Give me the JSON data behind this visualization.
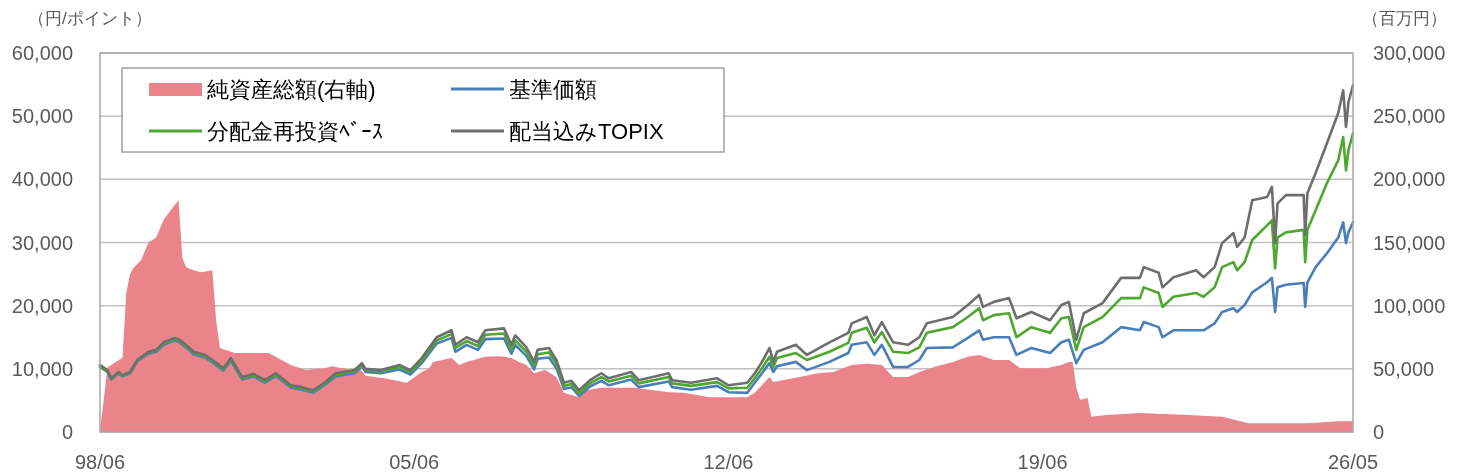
{
  "chart_data": {
    "type": "line",
    "ylabel": "（円/ポイント）",
    "y2label": "（百万円）",
    "xlim": [
      "1998-06",
      "2026-05"
    ],
    "xticks": [
      {
        "value": "1998-06",
        "label": "98/06"
      },
      {
        "value": "2005-06",
        "label": "05/06"
      },
      {
        "value": "2012-06",
        "label": "12/06"
      },
      {
        "value": "2019-06",
        "label": "19/06"
      },
      {
        "value": "2026-05",
        "label": "26/05"
      }
    ],
    "ylim": [
      0,
      60000
    ],
    "yticks": [
      {
        "value": 0,
        "label": "0"
      },
      {
        "value": 10000,
        "label": "10,000"
      },
      {
        "value": 20000,
        "label": "20,000"
      },
      {
        "value": 30000,
        "label": "30,000"
      },
      {
        "value": 40000,
        "label": "40,000"
      },
      {
        "value": 50000,
        "label": "50,000"
      },
      {
        "value": 60000,
        "label": "60,000"
      }
    ],
    "y2lim": [
      0,
      300000
    ],
    "y2ticks": [
      {
        "value": 0,
        "label": "0"
      },
      {
        "value": 50000,
        "label": "50,000"
      },
      {
        "value": 100000,
        "label": "100,000"
      },
      {
        "value": 150000,
        "label": "150,000"
      },
      {
        "value": 200000,
        "label": "200,000"
      },
      {
        "value": 250000,
        "label": "250,000"
      },
      {
        "value": 300000,
        "label": "300,000"
      }
    ],
    "grid": "y",
    "legend": "top left",
    "x": [
      "1998-06",
      "1998-08",
      "1998-09",
      "1998-11",
      "1998-12",
      "1999-02",
      "1999-04",
      "1999-07",
      "1999-09",
      "1999-11",
      "2000-02",
      "2000-03",
      "2000-05",
      "2000-07",
      "2000-10",
      "2000-12",
      "2001-03",
      "2001-05",
      "2001-08",
      "2001-11",
      "2002-02",
      "2002-05",
      "2002-09",
      "2002-12",
      "2003-03",
      "2003-06",
      "2003-09",
      "2004-02",
      "2004-04",
      "2004-05",
      "2004-09",
      "2005-02",
      "2005-05",
      "2005-08",
      "2005-12",
      "2006-04",
      "2006-05",
      "2006-08",
      "2006-11",
      "2007-01",
      "2007-06",
      "2007-08",
      "2007-09",
      "2007-12",
      "2008-02",
      "2008-03",
      "2008-06",
      "2008-08",
      "2008-10",
      "2008-12",
      "2009-02",
      "2009-05",
      "2009-08",
      "2009-10",
      "2010-04",
      "2010-06",
      "2011-02",
      "2011-03",
      "2011-08",
      "2012-03",
      "2012-06",
      "2012-11",
      "2013-01",
      "2013-03",
      "2013-05",
      "2013-06",
      "2013-07",
      "2013-12",
      "2014-03",
      "2014-09",
      "2015-02",
      "2015-03",
      "2015-07",
      "2015-09",
      "2015-11",
      "2016-02",
      "2016-06",
      "2016-09",
      "2016-11",
      "2017-06",
      "2017-10",
      "2018-01",
      "2018-02",
      "2018-05",
      "2018-09",
      "2018-11",
      "2019-03",
      "2019-08",
      "2019-11",
      "2020-01",
      "2020-03",
      "2020-05",
      "2020-10",
      "2021-03",
      "2021-08",
      "2021-09",
      "2022-01",
      "2022-02",
      "2022-05",
      "2022-11",
      "2023-01",
      "2023-04",
      "2023-06",
      "2023-09",
      "2023-10",
      "2023-12",
      "2024-02",
      "2024-06",
      "2024-07-10",
      "2024-08-05",
      "2024-08-25",
      "2024-11",
      "2025-03-25",
      "2025-04-07",
      "2025-04-25",
      "2025-07",
      "2025-10",
      "2026-01",
      "2026-02-10",
      "2026-03-05",
      "2026-03-25",
      "2026-05"
    ],
    "series": [
      {
        "name": "純資産総額(右軸)",
        "type": "area",
        "axis": "y2",
        "color": "#eb838a",
        "x": [
          "1998-06",
          "1998-07",
          "1998-08",
          "1998-11",
          "1998-12",
          "1999-01",
          "1999-02",
          "1999-03",
          "1999-05",
          "1999-07",
          "1999-09",
          "1999-11",
          "2000-01",
          "2000-03",
          "2000-04",
          "2000-05",
          "2000-07",
          "2000-09",
          "2000-12",
          "2001-01",
          "2001-02",
          "2001-06",
          "2001-10",
          "2002-03",
          "2002-05",
          "2002-09",
          "2003-01",
          "2003-06",
          "2003-08",
          "2004-01",
          "2004-03",
          "2004-05",
          "2004-10",
          "2005-04",
          "2005-08",
          "2005-10",
          "2005-11",
          "2006-04",
          "2006-06",
          "2006-08",
          "2007-01",
          "2007-05",
          "2007-08",
          "2007-10",
          "2007-12",
          "2008-02",
          "2008-05",
          "2008-08",
          "2008-10",
          "2009-02",
          "2009-04",
          "2009-08",
          "2010-05",
          "2011-02",
          "2011-06",
          "2012-01",
          "2012-06",
          "2012-11",
          "2013-01",
          "2013-05",
          "2013-06",
          "2014-01",
          "2014-06",
          "2014-10",
          "2015-03",
          "2015-07",
          "2015-11",
          "2016-02",
          "2016-06",
          "2016-09",
          "2017-01",
          "2017-06",
          "2017-10",
          "2018-01",
          "2018-05",
          "2018-09",
          "2018-12",
          "2019-07",
          "2019-11",
          "2020-01",
          "2020-02",
          "2020-03",
          "2020-04",
          "2020-06",
          "2020-07",
          "2020-11",
          "2021-08",
          "2022-09",
          "2023-06",
          "2024-01",
          "2025-05",
          "2026-01",
          "2026-05"
        ],
        "values": [
          2000,
          25000,
          51000,
          57000,
          58500,
          110000,
          125000,
          130000,
          136000,
          150000,
          154000,
          168000,
          176000,
          183500,
          138000,
          130500,
          128000,
          126500,
          128000,
          88500,
          66500,
          62500,
          62500,
          62500,
          59500,
          53000,
          49000,
          50500,
          52000,
          49000,
          52000,
          44500,
          42500,
          39000,
          47500,
          50500,
          55500,
          58500,
          53000,
          55500,
          59500,
          60000,
          58500,
          55500,
          53000,
          46500,
          49000,
          43500,
          31000,
          27500,
          33000,
          35000,
          35000,
          31500,
          31000,
          27500,
          27500,
          27500,
          31000,
          43500,
          39500,
          43500,
          46500,
          47500,
          53000,
          54000,
          53000,
          43500,
          43500,
          47500,
          51500,
          55500,
          59500,
          61000,
          57000,
          57000,
          50500,
          50500,
          53000,
          55500,
          55500,
          35500,
          25500,
          27000,
          12000,
          13500,
          15000,
          13500,
          12000,
          7000,
          7000,
          8500,
          8500
        ]
      },
      {
        "name": "基準価額",
        "color": "#4a7ebb",
        "values": [
          10300,
          9500,
          8300,
          9300,
          8800,
          9300,
          11200,
          12400,
          12700,
          13800,
          14500,
          14300,
          13400,
          12300,
          11800,
          11000,
          9700,
          11300,
          8300,
          8800,
          7800,
          8900,
          7000,
          6700,
          6200,
          7400,
          8800,
          9300,
          10400,
          9500,
          9300,
          9900,
          9100,
          10900,
          14000,
          14900,
          12700,
          13800,
          13000,
          14700,
          14800,
          12400,
          13800,
          12000,
          9900,
          11600,
          11800,
          10100,
          6800,
          7100,
          5700,
          7200,
          8100,
          7400,
          8300,
          7100,
          8000,
          7100,
          6700,
          7300,
          6300,
          6200,
          7800,
          9300,
          10900,
          9500,
          10400,
          11100,
          9800,
          11100,
          12500,
          13800,
          14200,
          12200,
          13800,
          10300,
          10300,
          11400,
          13300,
          13400,
          14900,
          16100,
          14600,
          15000,
          15000,
          12200,
          13300,
          12500,
          14200,
          14600,
          10900,
          13000,
          14200,
          16600,
          16100,
          17400,
          16600,
          15000,
          16100,
          16100,
          16100,
          17200,
          19000,
          19600,
          19000,
          20100,
          22100,
          23700,
          24400,
          19000,
          22900,
          23300,
          23600,
          19800,
          23700,
          26100,
          28300,
          30800,
          33200,
          29900,
          31600,
          33200
        ]
      },
      {
        "name": "分配金再投資ﾍﾞｰｽ",
        "color": "#4ea72e",
        "values": [
          10400,
          9600,
          8400,
          9400,
          8900,
          9400,
          11300,
          12600,
          12900,
          14000,
          14700,
          14500,
          13600,
          12500,
          12000,
          11200,
          9900,
          11500,
          8500,
          9000,
          8000,
          9100,
          7200,
          6900,
          6400,
          7600,
          9100,
          9600,
          10700,
          9800,
          9600,
          10300,
          9500,
          11300,
          14500,
          15500,
          13300,
          14400,
          13600,
          15400,
          15600,
          13100,
          14500,
          12700,
          10500,
          12300,
          12600,
          10800,
          7300,
          7600,
          6100,
          7700,
          8700,
          8000,
          8900,
          7700,
          8700,
          7700,
          7300,
          7900,
          6900,
          7000,
          8500,
          10100,
          11900,
          10300,
          11700,
          12500,
          11400,
          12700,
          14100,
          15700,
          16500,
          14200,
          15800,
          12700,
          12500,
          13400,
          15700,
          16600,
          18200,
          19600,
          17700,
          18500,
          18800,
          15000,
          16600,
          15700,
          18000,
          18200,
          13000,
          16600,
          18200,
          21200,
          21200,
          22900,
          22000,
          19800,
          21400,
          22000,
          21400,
          22900,
          26100,
          26900,
          25600,
          26900,
          30400,
          32700,
          33500,
          25900,
          30800,
          31600,
          32000,
          26900,
          32000,
          35100,
          39400,
          43000,
          46700,
          41400,
          44600,
          47300
        ]
      },
      {
        "name": "配当込みTOPIX",
        "color": "#6e6e6e",
        "values": [
          10600,
          9800,
          8500,
          9500,
          9000,
          9500,
          11400,
          12700,
          13000,
          14200,
          14900,
          14700,
          13800,
          12700,
          12200,
          11400,
          10100,
          11700,
          8700,
          9200,
          8200,
          9300,
          7400,
          7100,
          6600,
          7800,
          9300,
          9800,
          10900,
          10000,
          9800,
          10600,
          9800,
          11700,
          15000,
          16100,
          13800,
          15000,
          14200,
          16100,
          16400,
          13800,
          15300,
          13400,
          11100,
          13000,
          13300,
          11400,
          7800,
          8100,
          6600,
          8200,
          9300,
          8500,
          9500,
          8200,
          9300,
          8200,
          7800,
          8500,
          7400,
          7800,
          9300,
          11100,
          13300,
          11100,
          12700,
          13800,
          12200,
          14200,
          15700,
          17200,
          18200,
          15300,
          17400,
          14200,
          13800,
          15000,
          17200,
          18200,
          20100,
          21700,
          19800,
          20600,
          21200,
          18000,
          19000,
          17700,
          20100,
          20600,
          14600,
          18800,
          20400,
          24400,
          24400,
          26100,
          25200,
          22900,
          24500,
          25600,
          24500,
          26100,
          29900,
          31500,
          29300,
          30800,
          36700,
          37200,
          38800,
          29900,
          36200,
          37500,
          37500,
          31200,
          37800,
          41000,
          45700,
          50500,
          54100,
          48300,
          52200,
          54900
        ]
      }
    ]
  }
}
